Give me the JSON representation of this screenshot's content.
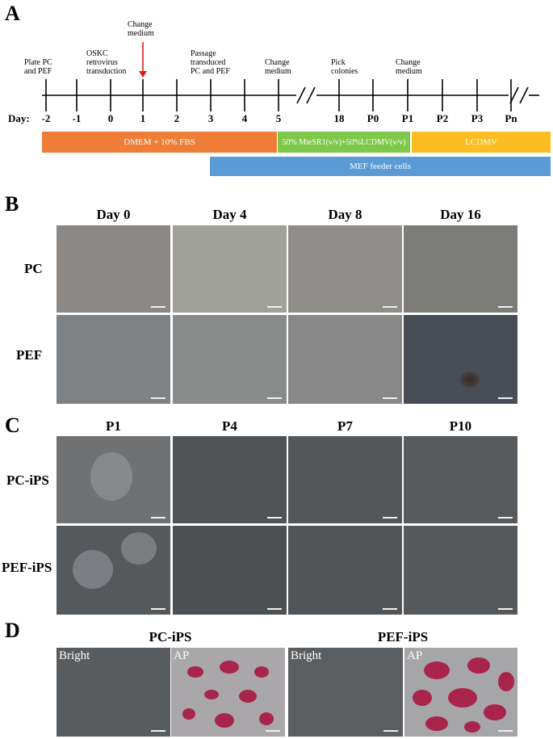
{
  "panels": {
    "a": "A",
    "b": "B",
    "c": "C",
    "d": "D"
  },
  "timeline": {
    "day_prefix": "Day:",
    "ticks": [
      "-2",
      "-1",
      "0",
      "1",
      "2",
      "3",
      "4",
      "5",
      "18",
      "P0",
      "P1",
      "P2",
      "P3",
      "Pn"
    ],
    "events": [
      {
        "lines": [
          "Plate PC",
          "and PEF"
        ]
      },
      {
        "lines": [
          "OSKC",
          "retrovirus",
          "transduction"
        ]
      },
      {
        "lines": [
          "Change",
          "medium"
        ]
      },
      {
        "lines": [
          "Passage",
          "transduced",
          "PC and PEF"
        ]
      },
      {
        "lines": [
          "Change",
          "medium"
        ]
      },
      {
        "lines": [
          "Pick",
          "colonies"
        ]
      },
      {
        "lines": [
          "Change",
          "medium"
        ]
      }
    ],
    "bars": [
      {
        "label": "DMEM + 10% FBS",
        "color": "#ee7d37"
      },
      {
        "label": "50% MteSR1(v/v)+50%LCDMV(v/v)",
        "color": "#7ec84a"
      },
      {
        "label": "LCDMV",
        "color": "#fbbd21"
      },
      {
        "label": "MEF feeder cells",
        "color": "#5b9bd5"
      }
    ],
    "arrow_color": "#e11b1b"
  },
  "panel_b": {
    "columns": [
      "Day 0",
      "Day 4",
      "Day 8",
      "Day 16"
    ],
    "rows": [
      "PC",
      "PEF"
    ]
  },
  "panel_c": {
    "columns": [
      "P1",
      "P4",
      "P7",
      "P10"
    ],
    "rows": [
      "PC-iPS",
      "PEF-iPS"
    ]
  },
  "panel_d": {
    "groups": [
      "PC-iPS",
      "PEF-iPS"
    ],
    "image_labels": [
      "Bright",
      "AP",
      "Bright",
      "AP"
    ],
    "stain_color": "#a8244d"
  }
}
